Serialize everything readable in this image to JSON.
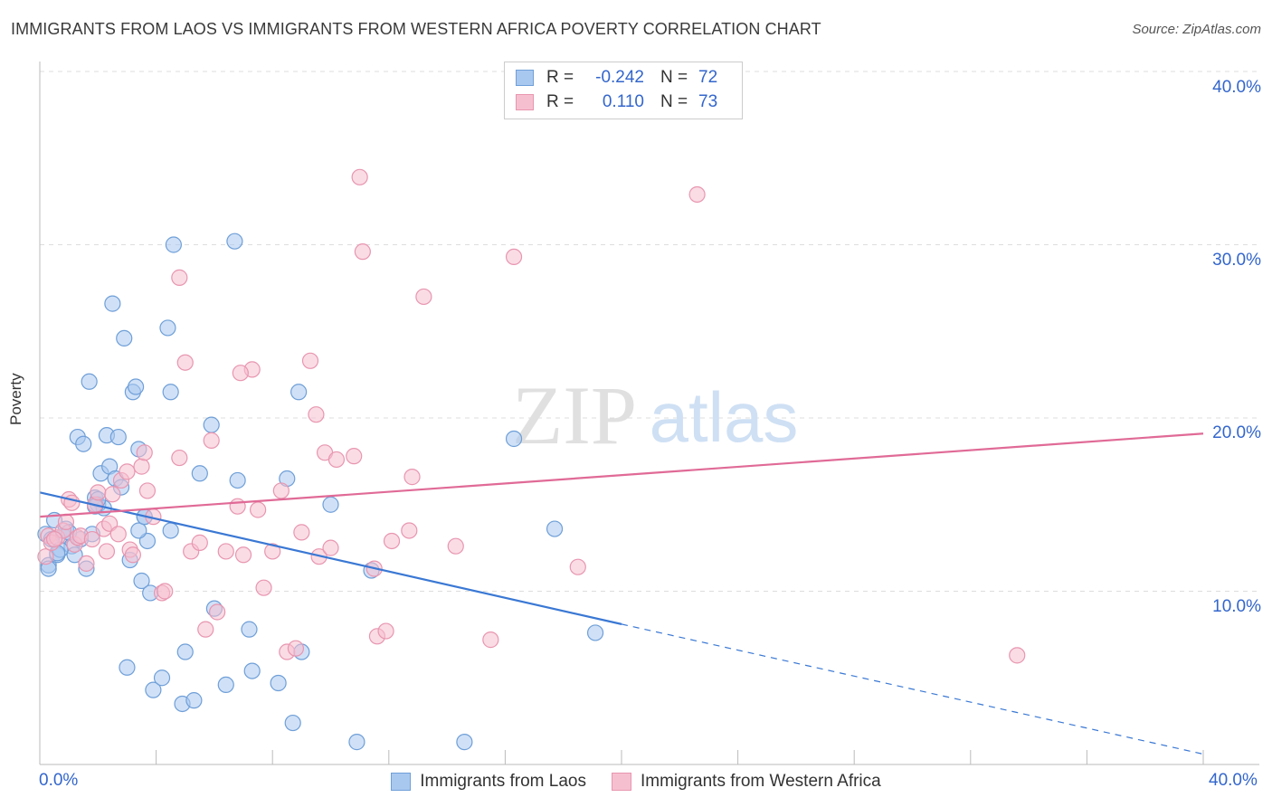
{
  "title": "IMMIGRANTS FROM LAOS VS IMMIGRANTS FROM WESTERN AFRICA POVERTY CORRELATION CHART",
  "source": "Source: ZipAtlas.com",
  "watermark": {
    "zip": "ZIP",
    "atlas": "atlas"
  },
  "colors": {
    "blue_fill": "#a9c8f0",
    "blue_stroke": "#6f9fd8",
    "blue_line": "#3a78d4",
    "pink_fill": "#f6bfd0",
    "pink_stroke": "#e896b0",
    "pink_line": "#e06a96",
    "tick_text": "#3366cc",
    "grid": "#dddddd"
  },
  "legend_top": [
    {
      "r_label": "R =",
      "r_value": "-0.242",
      "n_label": "N =",
      "n_value": "72"
    },
    {
      "r_label": "R =",
      "r_value": "0.110",
      "n_label": "N =",
      "n_value": "73"
    }
  ],
  "legend_bottom": [
    "Immigrants from Laos",
    "Immigrants from Western Africa"
  ],
  "chart_data": {
    "type": "scatter",
    "title": "IMMIGRANTS FROM LAOS VS IMMIGRANTS FROM WESTERN AFRICA POVERTY CORRELATION CHART",
    "xlabel": "",
    "ylabel": "Poverty",
    "xlim": [
      0,
      40
    ],
    "ylim": [
      0,
      40
    ],
    "x_tick_labels": [
      "0.0%",
      "40.0%"
    ],
    "y_ticks": [
      10,
      20,
      30,
      40
    ],
    "y_tick_labels": [
      "10.0%",
      "20.0%",
      "30.0%",
      "40.0%"
    ],
    "grid": true,
    "series": [
      {
        "name": "Immigrants from Laos",
        "r": -0.242,
        "n": 72,
        "trend": {
          "x0": 0,
          "y0": 15.7,
          "x1": 20,
          "y1": 8.1,
          "dashed_to_x": 40,
          "dashed_to_y": 0.6
        },
        "points": [
          [
            0.2,
            13.3
          ],
          [
            0.3,
            11.5
          ],
          [
            0.5,
            14.1
          ],
          [
            0.6,
            12.1
          ],
          [
            0.8,
            13.2
          ],
          [
            0.9,
            13.6
          ],
          [
            1.1,
            12.6
          ],
          [
            1.2,
            12.1
          ],
          [
            1.3,
            18.9
          ],
          [
            1.4,
            13.0
          ],
          [
            1.5,
            18.5
          ],
          [
            1.6,
            11.3
          ],
          [
            1.7,
            22.1
          ],
          [
            1.8,
            13.3
          ],
          [
            1.9,
            15.4
          ],
          [
            2.0,
            15.0
          ],
          [
            2.1,
            16.8
          ],
          [
            2.2,
            14.8
          ],
          [
            2.3,
            19.0
          ],
          [
            2.4,
            17.2
          ],
          [
            2.5,
            26.6
          ],
          [
            2.6,
            16.5
          ],
          [
            2.7,
            18.9
          ],
          [
            2.8,
            16.0
          ],
          [
            2.9,
            24.6
          ],
          [
            3.0,
            5.6
          ],
          [
            3.1,
            11.8
          ],
          [
            3.2,
            21.5
          ],
          [
            3.3,
            21.8
          ],
          [
            3.4,
            18.2
          ],
          [
            3.5,
            10.6
          ],
          [
            3.6,
            14.3
          ],
          [
            3.7,
            12.9
          ],
          [
            3.8,
            9.9
          ],
          [
            3.9,
            4.3
          ],
          [
            4.2,
            5.0
          ],
          [
            4.4,
            25.2
          ],
          [
            4.5,
            21.5
          ],
          [
            4.9,
            3.5
          ],
          [
            5.0,
            6.5
          ],
          [
            5.3,
            3.7
          ],
          [
            5.5,
            16.8
          ],
          [
            5.9,
            19.6
          ],
          [
            6.0,
            9.0
          ],
          [
            6.4,
            4.6
          ],
          [
            6.7,
            30.2
          ],
          [
            6.8,
            16.4
          ],
          [
            7.2,
            7.8
          ],
          [
            7.3,
            5.4
          ],
          [
            8.2,
            4.7
          ],
          [
            8.5,
            16.5
          ],
          [
            8.7,
            2.4
          ],
          [
            8.9,
            21.5
          ],
          [
            9.0,
            6.5
          ],
          [
            10.0,
            15.0
          ],
          [
            10.9,
            1.3
          ],
          [
            11.4,
            11.2
          ],
          [
            14.6,
            1.3
          ],
          [
            16.3,
            18.8
          ],
          [
            17.7,
            13.6
          ],
          [
            19.1,
            7.6
          ],
          [
            0.4,
            13.0
          ],
          [
            0.7,
            12.4
          ],
          [
            1.0,
            13.4
          ],
          [
            2.0,
            15.3
          ],
          [
            4.5,
            13.5
          ],
          [
            4.6,
            30.0
          ],
          [
            3.4,
            13.5
          ],
          [
            0.3,
            11.3
          ],
          [
            0.6,
            12.2
          ],
          [
            1.9,
            14.9
          ],
          [
            3.6,
            14.3
          ]
        ]
      },
      {
        "name": "Immigrants from Western Africa",
        "r": 0.11,
        "n": 73,
        "trend": {
          "x0": 0,
          "y0": 14.3,
          "x1": 40,
          "y1": 19.1
        },
        "points": [
          [
            0.2,
            12.0
          ],
          [
            0.3,
            13.2
          ],
          [
            0.4,
            12.8
          ],
          [
            0.6,
            13.1
          ],
          [
            0.8,
            13.5
          ],
          [
            0.9,
            14.0
          ],
          [
            1.0,
            15.3
          ],
          [
            1.1,
            15.1
          ],
          [
            1.2,
            12.7
          ],
          [
            1.3,
            13.1
          ],
          [
            1.4,
            13.2
          ],
          [
            1.6,
            11.6
          ],
          [
            1.8,
            13.0
          ],
          [
            1.9,
            15.0
          ],
          [
            2.0,
            15.7
          ],
          [
            2.2,
            13.6
          ],
          [
            2.3,
            12.3
          ],
          [
            2.4,
            13.9
          ],
          [
            2.5,
            15.6
          ],
          [
            2.7,
            13.3
          ],
          [
            2.8,
            16.4
          ],
          [
            3.0,
            16.9
          ],
          [
            3.1,
            12.4
          ],
          [
            3.2,
            12.1
          ],
          [
            3.5,
            17.2
          ],
          [
            3.6,
            18.0
          ],
          [
            3.7,
            15.8
          ],
          [
            3.9,
            14.3
          ],
          [
            4.2,
            9.9
          ],
          [
            4.3,
            10.0
          ],
          [
            4.8,
            17.7
          ],
          [
            5.0,
            23.2
          ],
          [
            5.2,
            12.3
          ],
          [
            5.5,
            12.8
          ],
          [
            5.7,
            7.8
          ],
          [
            5.9,
            18.7
          ],
          [
            6.1,
            8.8
          ],
          [
            6.4,
            12.3
          ],
          [
            6.8,
            14.9
          ],
          [
            7.0,
            12.1
          ],
          [
            7.3,
            22.8
          ],
          [
            7.5,
            14.7
          ],
          [
            7.7,
            10.2
          ],
          [
            8.0,
            12.3
          ],
          [
            8.3,
            15.8
          ],
          [
            8.5,
            6.5
          ],
          [
            8.8,
            6.7
          ],
          [
            9.0,
            13.4
          ],
          [
            9.3,
            23.3
          ],
          [
            9.5,
            20.2
          ],
          [
            9.6,
            12.0
          ],
          [
            9.8,
            18.0
          ],
          [
            10.0,
            12.5
          ],
          [
            10.2,
            17.6
          ],
          [
            10.8,
            17.8
          ],
          [
            11.0,
            33.9
          ],
          [
            11.1,
            29.6
          ],
          [
            11.5,
            11.3
          ],
          [
            11.6,
            7.4
          ],
          [
            11.9,
            7.7
          ],
          [
            12.1,
            12.9
          ],
          [
            12.7,
            13.5
          ],
          [
            12.8,
            16.6
          ],
          [
            13.2,
            27.0
          ],
          [
            14.3,
            12.6
          ],
          [
            15.5,
            7.2
          ],
          [
            16.3,
            29.3
          ],
          [
            18.5,
            11.4
          ],
          [
            22.6,
            32.9
          ],
          [
            33.6,
            6.3
          ],
          [
            4.8,
            28.1
          ],
          [
            6.9,
            22.6
          ],
          [
            0.5,
            13.0
          ]
        ]
      }
    ]
  }
}
